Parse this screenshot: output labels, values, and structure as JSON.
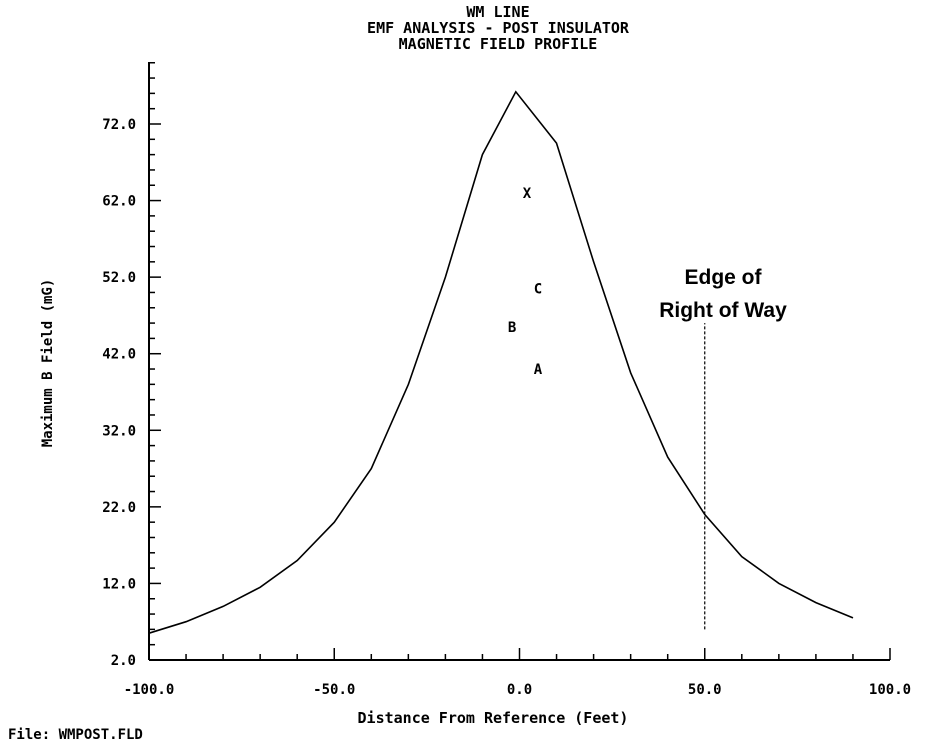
{
  "chart_data": {
    "type": "line",
    "title_lines": [
      "WM LINE",
      "EMF ANALYSIS - POST INSULATOR",
      "MAGNETIC FIELD PROFILE"
    ],
    "xlabel": "Distance From Reference (Feet)",
    "ylabel": "Maximum B Field (mG)",
    "xlim": [
      -100,
      100
    ],
    "ylim": [
      2,
      80
    ],
    "x_ticks": [
      -100,
      -50,
      0,
      50,
      100
    ],
    "x_tick_labels": [
      "-100.0",
      "-50.0",
      "0.0",
      "50.0",
      "100.0"
    ],
    "y_ticks": [
      2,
      12,
      22,
      32,
      42,
      52,
      62,
      72
    ],
    "y_tick_labels": [
      "2.0",
      "12.0",
      "22.0",
      "32.0",
      "42.0",
      "52.0",
      "62.0",
      "72.0"
    ],
    "grid": false,
    "series": [
      {
        "x": [
          -100,
          -90,
          -80,
          -70,
          -60,
          -50,
          -40,
          -30,
          -20,
          -10,
          -1,
          10,
          20,
          30,
          40,
          50,
          60,
          70,
          80,
          90
        ],
        "y": [
          5.5,
          7,
          9,
          11.5,
          15,
          20,
          27,
          38,
          52,
          68,
          76.2,
          69.5,
          54,
          39.5,
          28.5,
          21,
          15.5,
          12,
          9.5,
          7.5
        ]
      }
    ],
    "markers": [
      {
        "label": "X",
        "x": 2,
        "y": 63
      },
      {
        "label": "C",
        "x": 5,
        "y": 50.5
      },
      {
        "label": "B",
        "x": -2,
        "y": 45.5
      },
      {
        "label": "A",
        "x": 5,
        "y": 40
      }
    ],
    "vline": {
      "x": 50,
      "y_from": 6,
      "y_to": 46
    },
    "annotation": {
      "lines": [
        "Edge of",
        "Right of Way"
      ]
    }
  },
  "footer": {
    "file_label": "File: WMPOST.FLD"
  }
}
